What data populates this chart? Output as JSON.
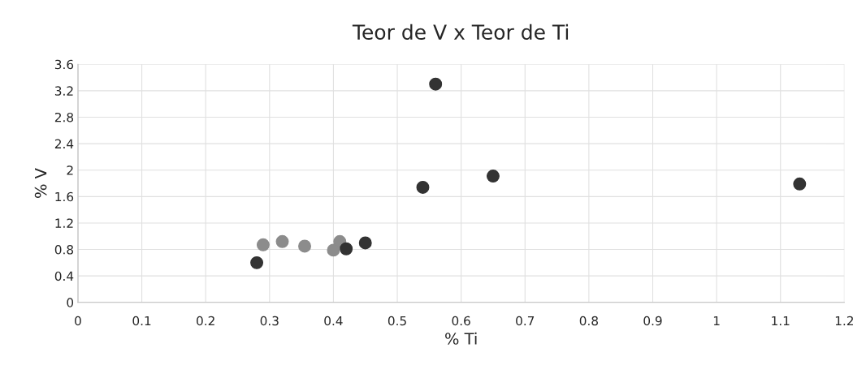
{
  "chart_data": {
    "type": "scatter",
    "title": "Teor de V x Teor de Ti",
    "xlabel": "% Ti",
    "ylabel": "% V",
    "series": [
      {
        "color": "#8c8c8c",
        "x": [
          0.29,
          0.32,
          0.355,
          0.4,
          0.41
        ],
        "values": [
          0.87,
          0.92,
          0.85,
          0.79,
          0.92
        ]
      },
      {
        "color": "#333333",
        "x": [
          0.28,
          0.42,
          0.45,
          0.54,
          0.56,
          0.65,
          1.13
        ],
        "values": [
          0.6,
          0.81,
          0.9,
          1.74,
          3.3,
          1.91,
          1.79
        ]
      }
    ],
    "xlim": [
      0,
      1.2
    ],
    "xticks": [
      0,
      0.1,
      0.2,
      0.3,
      0.4,
      0.5,
      0.6,
      0.7,
      0.8,
      0.9,
      1,
      1.1,
      1.2
    ],
    "ylim": [
      0,
      3.6
    ],
    "yticks": [
      0,
      0.4,
      0.8,
      1.2,
      1.6,
      2,
      2.4,
      2.8,
      3.2,
      3.6
    ],
    "grid": true,
    "marker": "circle"
  }
}
